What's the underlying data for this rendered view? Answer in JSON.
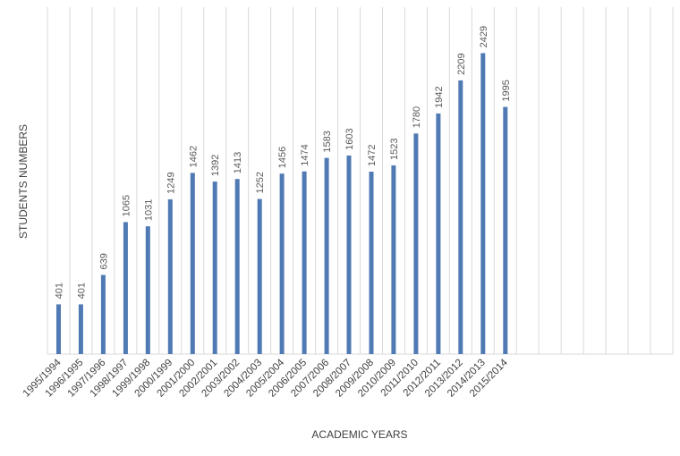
{
  "chart_data": {
    "type": "bar",
    "xlabel": "ACADEMIC YEARS",
    "ylabel": "STUDENTS NUMBERS",
    "categories": [
      "1995/1994",
      "1996/1995",
      "1997/1996",
      "1998/1997",
      "1999/1998",
      "2000/1999",
      "2001/2000",
      "2002/2001",
      "2003/2002",
      "2004/2003",
      "2005/2004",
      "2006/2005",
      "2007/2006",
      "2008/2007",
      "2009/2008",
      "2010/2009",
      "2011/2010",
      "2012/2011",
      "2013/2012",
      "2014/2013",
      "2015/2014",
      "",
      "",
      "",
      "",
      "",
      "",
      ""
    ],
    "values": [
      401,
      401,
      639,
      1065,
      1031,
      1249,
      1462,
      1392,
      1413,
      1252,
      1456,
      1474,
      1583,
      1603,
      1472,
      1523,
      1780,
      1942,
      2209,
      2429,
      1995,
      null,
      null,
      null,
      null,
      null,
      null,
      null
    ],
    "ylim": [
      0,
      2800
    ],
    "grid": "vertical",
    "legend": "none",
    "bar_color": "#4f7ab3"
  }
}
